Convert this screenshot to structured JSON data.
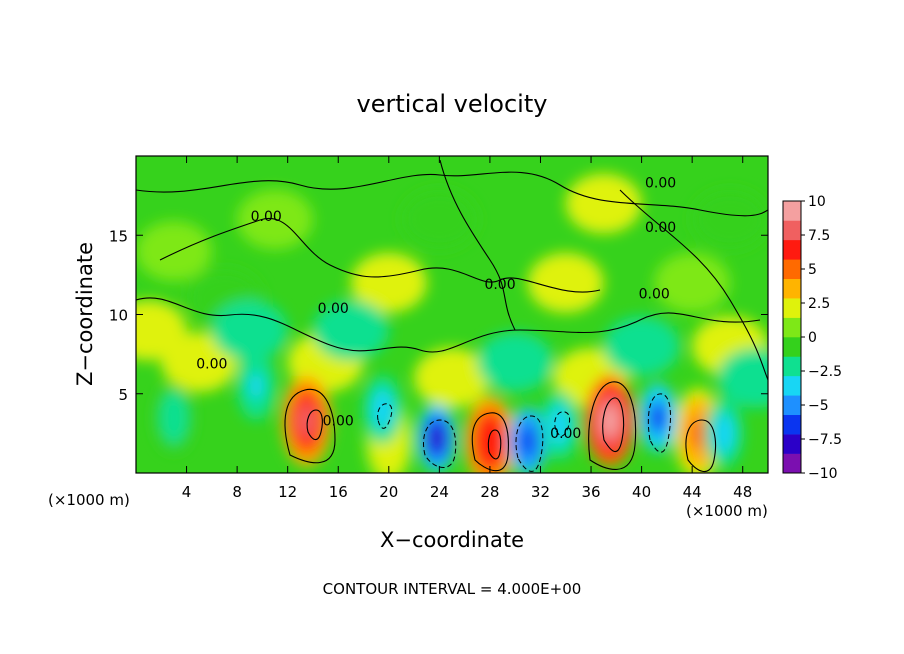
{
  "chart_data": {
    "type": "heatmap",
    "title": "vertical velocity",
    "xlabel": "X−coordinate",
    "ylabel": "Z−coordinate",
    "x_unit_left": "(×1000 m)",
    "x_unit_right": "(×1000 m)",
    "footer": "CONTOUR INTERVAL = 4.000E+00",
    "xlim": [
      0,
      50
    ],
    "ylim": [
      0,
      20
    ],
    "x_ticks": [
      4,
      8,
      12,
      16,
      20,
      24,
      28,
      32,
      36,
      40,
      44,
      48
    ],
    "x_tick_labels": [
      "4",
      "8",
      "12",
      "16",
      "20",
      "24",
      "28",
      "32",
      "36",
      "40",
      "44",
      "48"
    ],
    "y_ticks": [
      5,
      10,
      15
    ],
    "y_tick_labels": [
      "5",
      "10",
      "15"
    ],
    "colorbar": {
      "range": [
        -10,
        10
      ],
      "ticks": [
        10,
        7.5,
        5,
        2.5,
        0,
        -2.5,
        -5,
        -7.5,
        -10
      ],
      "tick_labels": [
        "10",
        "7.5",
        "5",
        "2.5",
        "0",
        "−2.5",
        "−5",
        "−7.5",
        "−10"
      ],
      "colors": [
        "#7b0fb0",
        "#2b00c8",
        "#0a35f0",
        "#1e90ff",
        "#18d6f4",
        "#0fe090",
        "#34d11c",
        "#7ee817",
        "#dff20c",
        "#ffb400",
        "#ff6a00",
        "#ff1a10",
        "#f06060",
        "#f4a0a0"
      ]
    },
    "contour_labels": [
      {
        "text": "0.00",
        "x": 10.3,
        "y": 15.9
      },
      {
        "text": "0.00",
        "x": 15.6,
        "y": 10.1
      },
      {
        "text": "0.00",
        "x": 6.0,
        "y": 6.6
      },
      {
        "text": "0.00",
        "x": 16.0,
        "y": 3.0
      },
      {
        "text": "0.00",
        "x": 28.8,
        "y": 11.6
      },
      {
        "text": "0.00",
        "x": 34.0,
        "y": 2.2
      },
      {
        "text": "0.00",
        "x": 41.5,
        "y": 15.2
      },
      {
        "text": "0.00",
        "x": 41.0,
        "y": 11.0
      },
      {
        "text": "0.00",
        "x": 41.5,
        "y": 18.0
      }
    ],
    "features": [
      {
        "x": 13.5,
        "z": 3.3,
        "w": 7.5,
        "kind": "updraft"
      },
      {
        "x": 28.0,
        "z": 2.0,
        "w": 7.0,
        "kind": "updraft"
      },
      {
        "x": 37.5,
        "z": 3.3,
        "w": 9.0,
        "kind": "updraft"
      },
      {
        "x": 44.5,
        "z": 2.5,
        "w": 5.0,
        "kind": "updraft"
      },
      {
        "x": 20.0,
        "z": 2.0,
        "w": 2.5,
        "kind": "updraft"
      },
      {
        "x": 23.8,
        "z": 2.2,
        "w": -8.0,
        "kind": "downdraft"
      },
      {
        "x": 31.0,
        "z": 2.0,
        "w": -6.5,
        "kind": "downdraft"
      },
      {
        "x": 41.3,
        "z": 3.5,
        "w": -6.0,
        "kind": "downdraft"
      },
      {
        "x": 19.5,
        "z": 4.0,
        "w": -3.5,
        "kind": "downdraft"
      },
      {
        "x": 33.5,
        "z": 3.0,
        "w": -4.0,
        "kind": "downdraft"
      },
      {
        "x": 46.5,
        "z": 2.5,
        "w": -4.0,
        "kind": "downdraft"
      },
      {
        "x": 9.5,
        "z": 5.5,
        "w": -3.0,
        "kind": "downdraft"
      },
      {
        "x": 3.0,
        "z": 3.5,
        "w": -2.5,
        "kind": "downdraft"
      }
    ],
    "grid": false,
    "legend": "colorbar-right"
  }
}
